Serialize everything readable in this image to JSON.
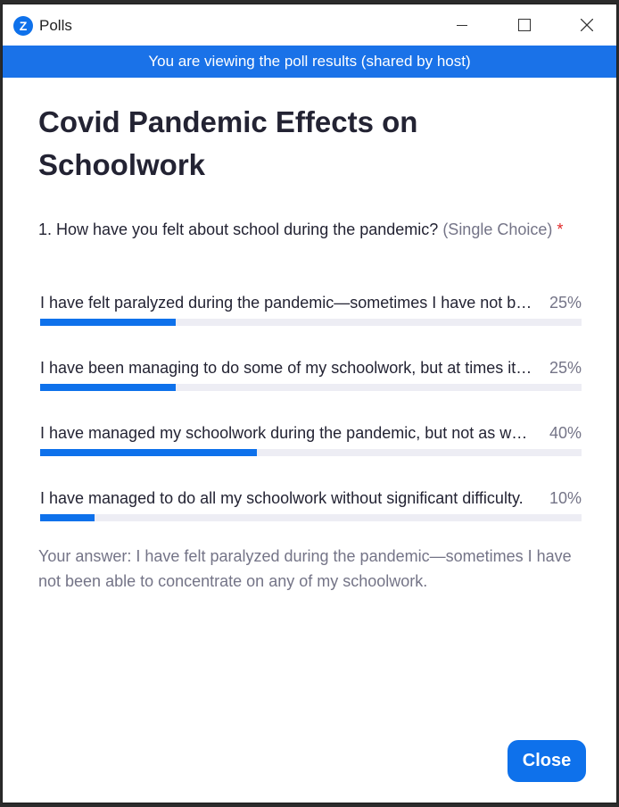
{
  "window": {
    "app_name": "Polls",
    "logo_letter": "Z"
  },
  "banner": "You are viewing the poll results (shared by host)",
  "poll": {
    "title": "Covid Pandemic Effects on Schoolwork",
    "question_text": "1. How have you felt about school during the pandemic?",
    "question_type": "(Single Choice)",
    "required_marker": "*",
    "options": [
      {
        "text": "I have felt paralyzed during the pandemic—sometimes I have not been able to concentrate on any of my schoolwork.",
        "percent_label": "25%",
        "percent": 25
      },
      {
        "text": "I have been managing to do some of my schoolwork, but at times it has been difficult.",
        "percent_label": "25%",
        "percent": 25
      },
      {
        "text": "I have managed my schoolwork during the pandemic, but not as well as before.",
        "percent_label": "40%",
        "percent": 40
      },
      {
        "text": "I have managed to do all my schoolwork without significant difficulty.",
        "percent_label": "10%",
        "percent": 10
      }
    ],
    "your_answer": "Your answer: I have felt paralyzed during the pandemic—sometimes I have not been able to concentrate on any of my schoolwork."
  },
  "buttons": {
    "close_label": "Close"
  },
  "colors": {
    "accent": "#0e71eb",
    "banner": "#1a72e8",
    "track": "#ededf4"
  }
}
